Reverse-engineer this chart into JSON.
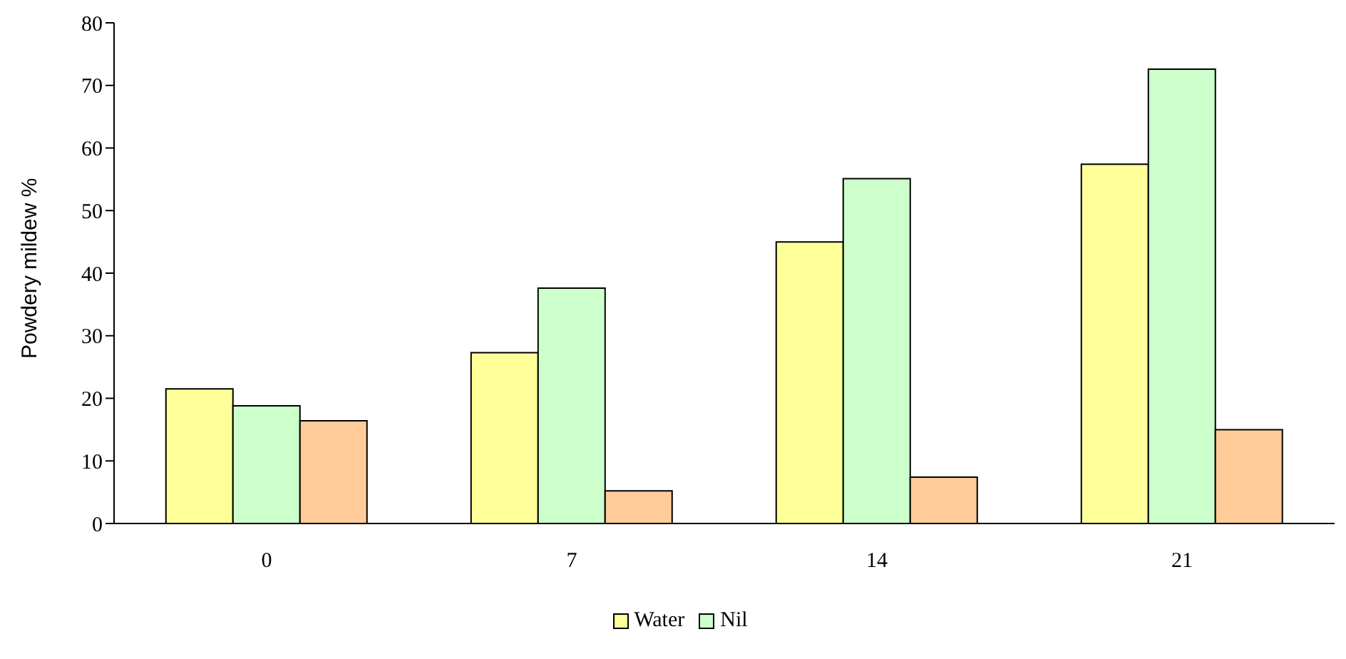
{
  "chart_data": {
    "type": "bar",
    "ylabel": "Powdery mildew %",
    "categories": [
      "0",
      "7",
      "14",
      "21"
    ],
    "series": [
      {
        "name": "Water",
        "color": "#ffff99",
        "values": [
          21.5,
          27.3,
          45.0,
          57.4
        ]
      },
      {
        "name": "Nil",
        "color": "#ccffcc",
        "values": [
          18.8,
          37.6,
          55.1,
          72.6
        ]
      },
      {
        "color": "#ffcc99",
        "values": [
          16.4,
          5.2,
          7.4,
          15.0
        ]
      }
    ],
    "ylim": [
      0,
      80
    ],
    "yticks": [
      0,
      10,
      20,
      30,
      40,
      50,
      60,
      70,
      80
    ],
    "legend": "bottom"
  }
}
